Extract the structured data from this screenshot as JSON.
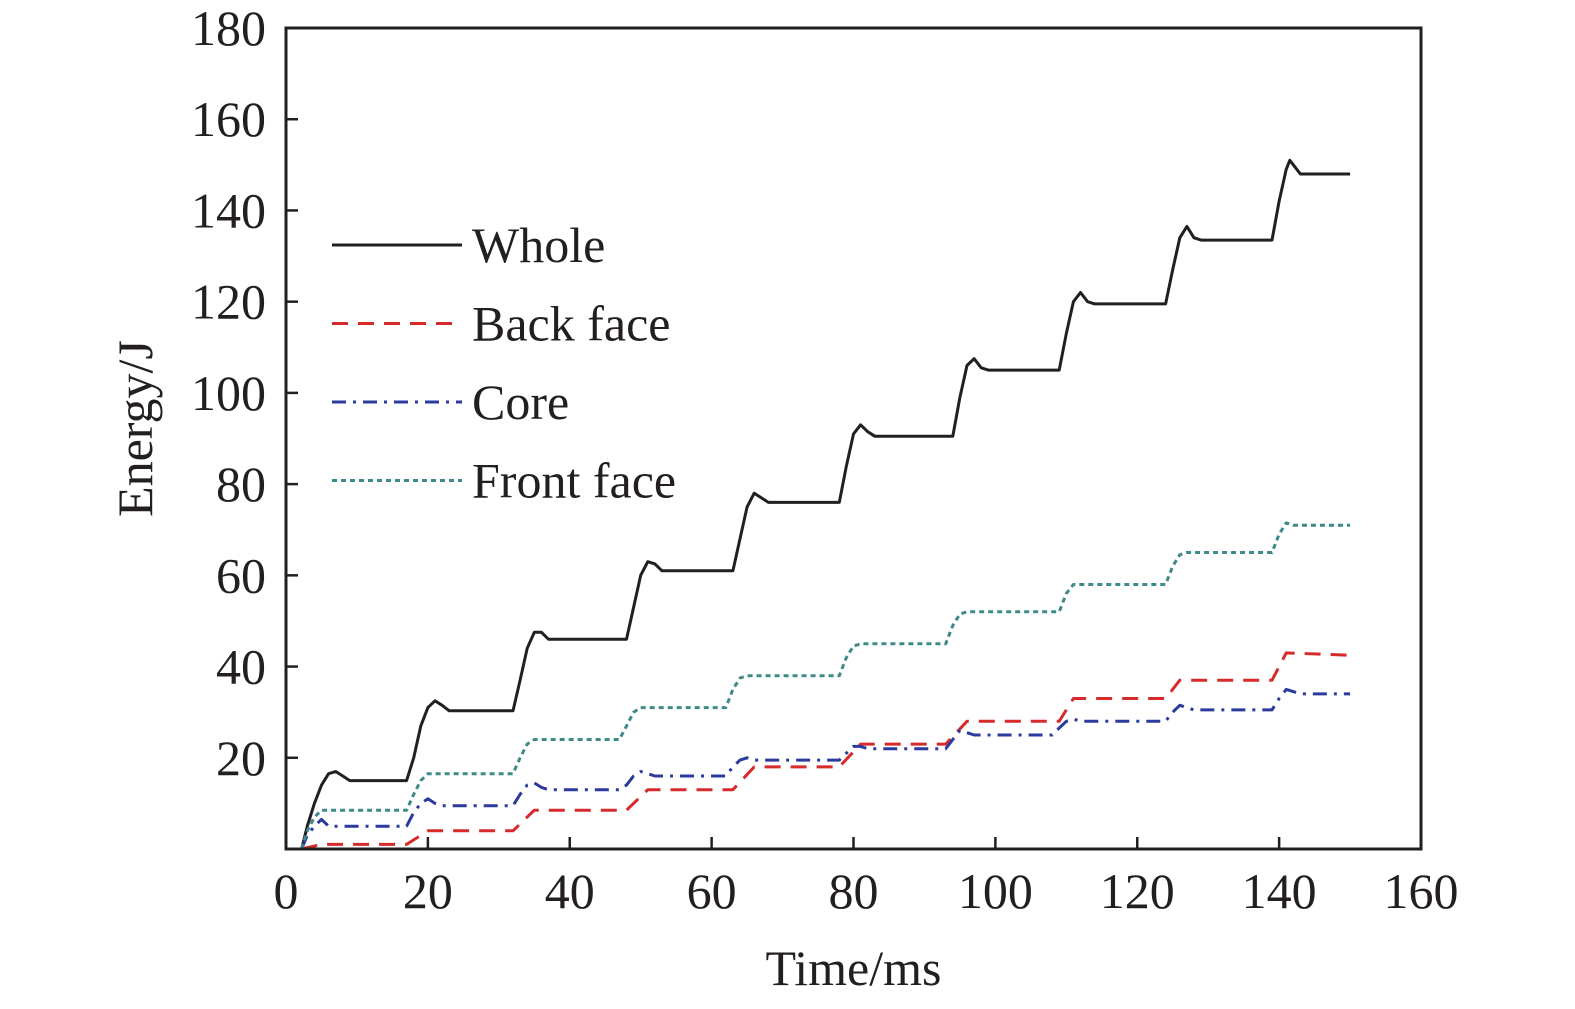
{
  "chart_data": {
    "type": "line",
    "title": "",
    "xlabel": "Time/ms",
    "ylabel": "Energy/J",
    "xlim": [
      0,
      160
    ],
    "ylim": [
      0,
      180
    ],
    "x_ticks": [
      0,
      20,
      40,
      60,
      80,
      100,
      120,
      140,
      160
    ],
    "y_ticks": [
      20,
      40,
      60,
      80,
      100,
      120,
      140,
      160,
      180
    ],
    "grid": false,
    "legend_position": "upper-left",
    "series": [
      {
        "name": "Whole",
        "color": "#231f20",
        "dash": "solid",
        "points": [
          [
            2.2,
            0
          ],
          [
            3,
            5
          ],
          [
            4,
            10
          ],
          [
            5,
            14
          ],
          [
            6,
            16.5
          ],
          [
            7,
            17
          ],
          [
            8,
            16
          ],
          [
            9,
            15
          ],
          [
            17,
            15
          ],
          [
            18,
            20
          ],
          [
            19,
            27
          ],
          [
            20,
            31
          ],
          [
            21,
            32.5
          ],
          [
            22,
            31.5
          ],
          [
            23,
            30.3
          ],
          [
            32,
            30.3
          ],
          [
            33,
            37
          ],
          [
            34,
            44
          ],
          [
            35,
            47.5
          ],
          [
            36,
            47.5
          ],
          [
            37,
            46
          ],
          [
            48,
            46
          ],
          [
            49,
            53
          ],
          [
            50,
            60
          ],
          [
            51,
            63
          ],
          [
            52,
            62.5
          ],
          [
            53,
            61
          ],
          [
            63,
            61
          ],
          [
            64,
            68
          ],
          [
            65,
            75
          ],
          [
            66,
            78
          ],
          [
            67,
            77
          ],
          [
            68,
            76
          ],
          [
            78,
            76
          ],
          [
            79,
            84
          ],
          [
            80,
            91
          ],
          [
            81,
            93
          ],
          [
            82,
            91.5
          ],
          [
            83,
            90.5
          ],
          [
            94,
            90.5
          ],
          [
            95,
            99
          ],
          [
            96,
            106
          ],
          [
            97,
            107.5
          ],
          [
            98,
            105.5
          ],
          [
            99,
            105
          ],
          [
            109,
            105
          ],
          [
            110,
            113
          ],
          [
            111,
            120
          ],
          [
            112,
            122
          ],
          [
            113,
            120
          ],
          [
            114,
            119.5
          ],
          [
            124,
            119.5
          ],
          [
            125,
            127
          ],
          [
            126,
            134
          ],
          [
            127,
            136.5
          ],
          [
            128,
            134
          ],
          [
            129,
            133.5
          ],
          [
            139,
            133.5
          ],
          [
            140,
            142
          ],
          [
            141,
            149
          ],
          [
            141.5,
            151
          ],
          [
            142,
            150
          ],
          [
            143,
            148
          ],
          [
            150,
            148
          ]
        ]
      },
      {
        "name": "Back face",
        "color": "#d72b2b",
        "dash": "dashed",
        "points": [
          [
            2.2,
            0
          ],
          [
            5,
            1
          ],
          [
            17,
            1
          ],
          [
            20,
            4
          ],
          [
            32,
            4
          ],
          [
            35,
            8.5
          ],
          [
            48,
            8.5
          ],
          [
            51,
            13
          ],
          [
            63,
            13
          ],
          [
            66,
            18
          ],
          [
            78,
            18
          ],
          [
            81,
            23
          ],
          [
            93,
            23
          ],
          [
            96,
            28
          ],
          [
            109,
            28
          ],
          [
            111,
            33
          ],
          [
            124,
            33
          ],
          [
            126,
            37
          ],
          [
            139,
            37
          ],
          [
            141,
            43
          ],
          [
            150,
            42.5
          ]
        ]
      },
      {
        "name": "Core",
        "color": "#2b3a9c",
        "dash": "dashdot",
        "points": [
          [
            2.2,
            0
          ],
          [
            3,
            3
          ],
          [
            4,
            5
          ],
          [
            5,
            6.5
          ],
          [
            6,
            5
          ],
          [
            17,
            5
          ],
          [
            18,
            8
          ],
          [
            19,
            10
          ],
          [
            20,
            11
          ],
          [
            21,
            10
          ],
          [
            22,
            9.5
          ],
          [
            32,
            9.5
          ],
          [
            33,
            12
          ],
          [
            34,
            14
          ],
          [
            35,
            14.5
          ],
          [
            36,
            13.5
          ],
          [
            37,
            13
          ],
          [
            47,
            13
          ],
          [
            48,
            14
          ],
          [
            49,
            16
          ],
          [
            50,
            17
          ],
          [
            51,
            16.5
          ],
          [
            52,
            16
          ],
          [
            62,
            16
          ],
          [
            63,
            18
          ],
          [
            64,
            19.5
          ],
          [
            65,
            20
          ],
          [
            66,
            19.5
          ],
          [
            78,
            19.5
          ],
          [
            79,
            21
          ],
          [
            80,
            22.5
          ],
          [
            81,
            22.5
          ],
          [
            82,
            22
          ],
          [
            93,
            22
          ],
          [
            94,
            24
          ],
          [
            95,
            26
          ],
          [
            96,
            25.5
          ],
          [
            97,
            25
          ],
          [
            108,
            25
          ],
          [
            109,
            26.5
          ],
          [
            110,
            28
          ],
          [
            111,
            28.5
          ],
          [
            112,
            28
          ],
          [
            124,
            28
          ],
          [
            125,
            30
          ],
          [
            126,
            31.5
          ],
          [
            127,
            31
          ],
          [
            128,
            30.5
          ],
          [
            139,
            30.5
          ],
          [
            140,
            33
          ],
          [
            141,
            35
          ],
          [
            142,
            34.5
          ],
          [
            143,
            34
          ],
          [
            150,
            34
          ]
        ]
      },
      {
        "name": "Front face",
        "color": "#3d8a88",
        "dash": "dotted",
        "points": [
          [
            2.2,
            0
          ],
          [
            3,
            4
          ],
          [
            4,
            7
          ],
          [
            5,
            8.5
          ],
          [
            17,
            8.5
          ],
          [
            18,
            12
          ],
          [
            19,
            15
          ],
          [
            20,
            16.5
          ],
          [
            32,
            16.5
          ],
          [
            33,
            20
          ],
          [
            34,
            23
          ],
          [
            35,
            24
          ],
          [
            47,
            24
          ],
          [
            48,
            27
          ],
          [
            49,
            30
          ],
          [
            50,
            31
          ],
          [
            62,
            31
          ],
          [
            63,
            35
          ],
          [
            64,
            37.5
          ],
          [
            65,
            38
          ],
          [
            78,
            38
          ],
          [
            79,
            42
          ],
          [
            80,
            44.5
          ],
          [
            81,
            45
          ],
          [
            93,
            45
          ],
          [
            94,
            49
          ],
          [
            95,
            51.5
          ],
          [
            96,
            52
          ],
          [
            109,
            52
          ],
          [
            110,
            56
          ],
          [
            111,
            58
          ],
          [
            124,
            58
          ],
          [
            125,
            62
          ],
          [
            126,
            64.5
          ],
          [
            127,
            65
          ],
          [
            139,
            65
          ],
          [
            140,
            69
          ],
          [
            141,
            71.5
          ],
          [
            142,
            71
          ],
          [
            150,
            71
          ]
        ]
      }
    ]
  }
}
